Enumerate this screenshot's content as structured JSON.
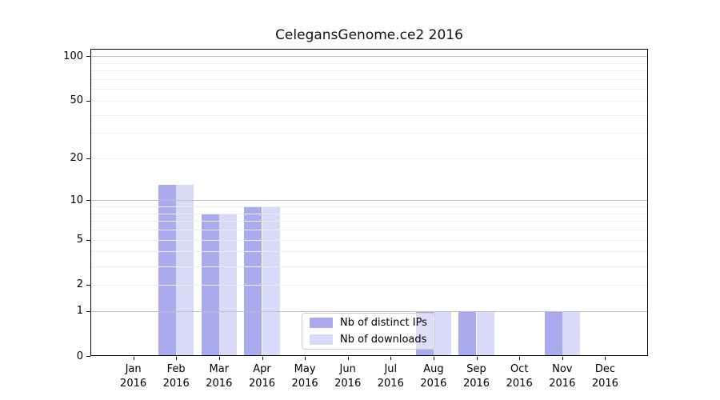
{
  "chart_data": {
    "type": "bar",
    "title": "CelegansGenome.ce2 2016",
    "categories": [
      "Jan",
      "Feb",
      "Mar",
      "Apr",
      "May",
      "Jun",
      "Jul",
      "Aug",
      "Sep",
      "Oct",
      "Nov",
      "Dec"
    ],
    "category_year": "2016",
    "series": [
      {
        "name": "Nb of distinct IPs",
        "color": "#aaaaee",
        "values": [
          0,
          13,
          8,
          9,
          0,
          0,
          0,
          1,
          1,
          0,
          1,
          0
        ]
      },
      {
        "name": "Nb of downloads",
        "color": "#d9d9f8",
        "values": [
          0,
          13,
          8,
          9,
          0,
          0,
          0,
          1,
          1,
          0,
          1,
          0
        ]
      }
    ],
    "y_axis": {
      "scale": "log1p",
      "tick_values": [
        0,
        1,
        2,
        5,
        10,
        20,
        50,
        100
      ],
      "tick_labels": [
        "0",
        "1",
        "2",
        "5",
        "10",
        "20",
        "50",
        "100"
      ],
      "major_gridlines": [
        1,
        10,
        100
      ],
      "minor_gridlines": [
        2,
        3,
        4,
        5,
        6,
        7,
        8,
        9,
        20,
        30,
        40,
        50,
        60,
        70,
        80,
        90
      ],
      "ylim": [
        0,
        112.3
      ]
    },
    "legend": {
      "position": "lower center",
      "entries": [
        "Nb of distinct IPs",
        "Nb of downloads"
      ]
    },
    "grid_on": true
  },
  "colors": {
    "major_grid": "#bfbfbf",
    "minor_grid": "#ececec",
    "spine": "#000000",
    "bar_distinct_ips": "#aaaaee",
    "bar_downloads": "#d9d9f8"
  }
}
